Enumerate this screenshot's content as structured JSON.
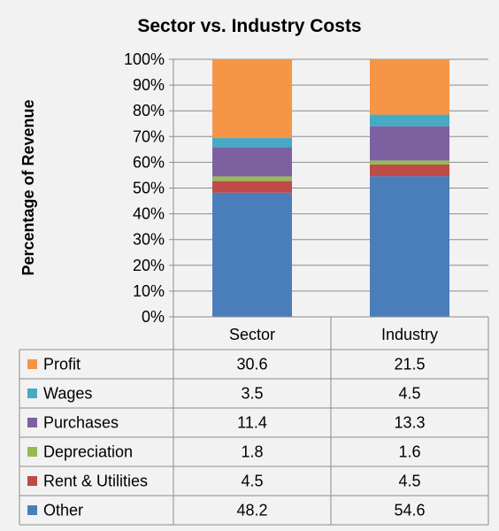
{
  "chart_data": {
    "type": "bar",
    "stacked": true,
    "title": "Sector vs. Industry Costs",
    "xlabel": "",
    "ylabel": "Percentage of Revenue",
    "ylim": [
      0,
      100
    ],
    "y_ticks": [
      "0%",
      "10%",
      "20%",
      "30%",
      "40%",
      "50%",
      "60%",
      "70%",
      "80%",
      "90%",
      "100%"
    ],
    "grid": true,
    "categories": [
      "Sector",
      "Industry"
    ],
    "series": [
      {
        "name": "Other",
        "color": "#4a7ebb",
        "values": [
          48.2,
          54.6
        ]
      },
      {
        "name": "Rent & Utilities",
        "color": "#be4b48",
        "values": [
          4.5,
          4.5
        ]
      },
      {
        "name": "Depreciation",
        "color": "#98b954",
        "values": [
          1.8,
          1.6
        ]
      },
      {
        "name": "Purchases",
        "color": "#7d60a0",
        "values": [
          11.4,
          13.3
        ]
      },
      {
        "name": "Wages",
        "color": "#46aac5",
        "values": [
          3.5,
          4.5
        ]
      },
      {
        "name": "Profit",
        "color": "#f69546",
        "values": [
          30.6,
          21.5
        ]
      }
    ],
    "data_table_order": [
      "Profit",
      "Wages",
      "Purchases",
      "Depreciation",
      "Rent & Utilities",
      "Other"
    ]
  }
}
